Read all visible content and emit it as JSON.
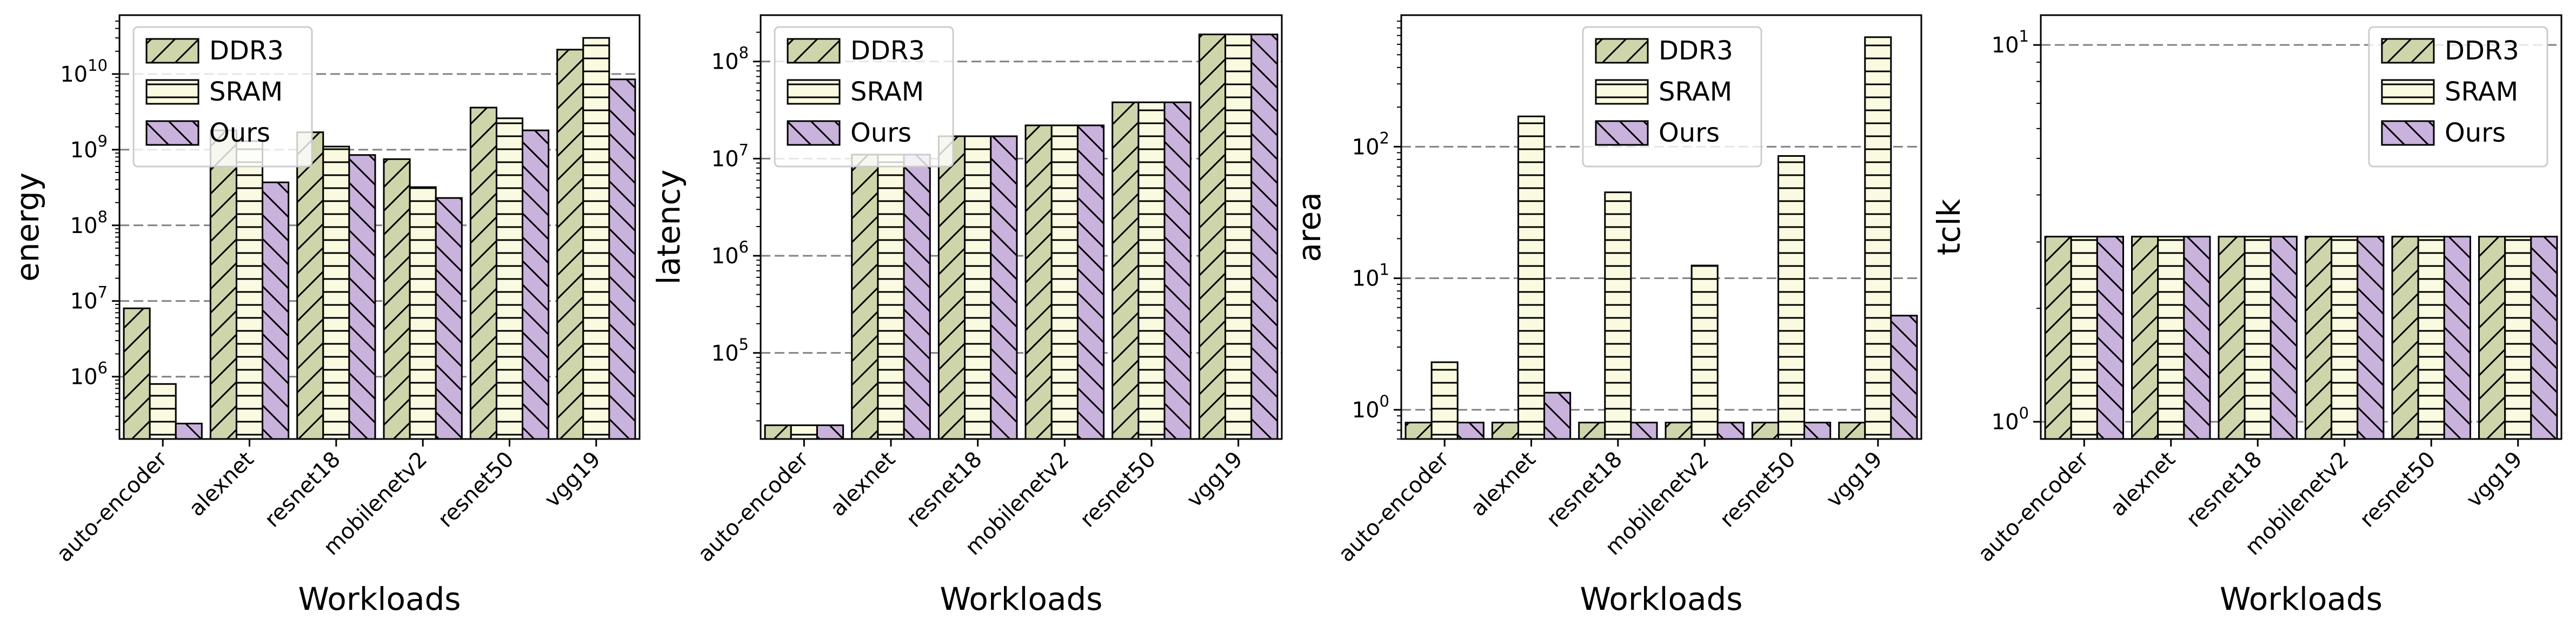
{
  "chart_data": [
    {
      "type": "bar",
      "yscale": "log",
      "ylabel": "energy",
      "xlabel": "Workloads",
      "ylim": [
        150000,
        60000000000
      ],
      "yticks": [
        {
          "value": 1000000,
          "base": "10",
          "exp": "6"
        },
        {
          "value": 10000000,
          "base": "10",
          "exp": "7"
        },
        {
          "value": 100000000,
          "base": "10",
          "exp": "8"
        },
        {
          "value": 1000000000,
          "base": "10",
          "exp": "9"
        },
        {
          "value": 10000000000,
          "base": "10",
          "exp": "10"
        }
      ],
      "grid": "y-major-dashed",
      "legend_position": "top-left",
      "categories": [
        "auto-encoder",
        "alexnet",
        "resnet18",
        "mobilenetv2",
        "resnet50",
        "vgg19"
      ],
      "series": [
        {
          "name": "DDR3",
          "values": [
            8000000,
            1800000000,
            1700000000,
            750000000,
            3600000000,
            21000000000
          ]
        },
        {
          "name": "SRAM",
          "values": [
            800000,
            1300000000,
            1100000000,
            320000000,
            2600000000,
            30000000000
          ]
        },
        {
          "name": "Ours",
          "values": [
            240000,
            370000000,
            850000000,
            230000000,
            1800000000,
            8500000000
          ]
        }
      ]
    },
    {
      "type": "bar",
      "yscale": "log",
      "ylabel": "latency",
      "xlabel": "Workloads",
      "ylim": [
        13000,
        300000000
      ],
      "yticks": [
        {
          "value": 100000,
          "base": "10",
          "exp": "5"
        },
        {
          "value": 1000000,
          "base": "10",
          "exp": "6"
        },
        {
          "value": 10000000,
          "base": "10",
          "exp": "7"
        },
        {
          "value": 100000000,
          "base": "10",
          "exp": "8"
        }
      ],
      "grid": "y-major-dashed",
      "legend_position": "top-left",
      "categories": [
        "auto-encoder",
        "alexnet",
        "resnet18",
        "mobilenetv2",
        "resnet50",
        "vgg19"
      ],
      "series": [
        {
          "name": "DDR3",
          "values": [
            18000,
            11000000,
            17000000,
            22000000,
            38000000,
            190000000
          ]
        },
        {
          "name": "SRAM",
          "values": [
            18000,
            11000000,
            17000000,
            22000000,
            38000000,
            190000000
          ]
        },
        {
          "name": "Ours",
          "values": [
            18000,
            11000000,
            17000000,
            22000000,
            38000000,
            190000000
          ]
        }
      ]
    },
    {
      "type": "bar",
      "yscale": "log",
      "ylabel": "area",
      "xlabel": "Workloads",
      "ylim": [
        0.6,
        1000
      ],
      "yticks": [
        {
          "value": 1,
          "base": "10",
          "exp": "0"
        },
        {
          "value": 10,
          "base": "10",
          "exp": "1"
        },
        {
          "value": 100,
          "base": "10",
          "exp": "2"
        }
      ],
      "grid": "y-major-dashed",
      "legend_position": "top-center",
      "categories": [
        "auto-encoder",
        "alexnet",
        "resnet18",
        "mobilenetv2",
        "resnet50",
        "vgg19"
      ],
      "series": [
        {
          "name": "DDR3",
          "values": [
            0.8,
            0.8,
            0.8,
            0.8,
            0.8,
            0.8
          ]
        },
        {
          "name": "SRAM",
          "values": [
            2.3,
            170,
            45,
            12.5,
            85,
            680
          ]
        },
        {
          "name": "Ours",
          "values": [
            0.8,
            1.35,
            0.8,
            0.8,
            0.8,
            5.2
          ]
        }
      ]
    },
    {
      "type": "bar",
      "yscale": "log",
      "ylabel": "tclk",
      "xlabel": "Workloads",
      "ylim": [
        0.9,
        12
      ],
      "yticks": [
        {
          "value": 1,
          "base": "10",
          "exp": "0"
        },
        {
          "value": 10,
          "base": "10",
          "exp": "1"
        }
      ],
      "grid": "y-major-dashed",
      "legend_position": "top-right",
      "categories": [
        "auto-encoder",
        "alexnet",
        "resnet18",
        "mobilenetv2",
        "resnet50",
        "vgg19"
      ],
      "series": [
        {
          "name": "DDR3",
          "values": [
            3.1,
            3.1,
            3.1,
            3.1,
            3.1,
            3.1
          ]
        },
        {
          "name": "SRAM",
          "values": [
            3.1,
            3.1,
            3.1,
            3.1,
            3.1,
            3.1
          ]
        },
        {
          "name": "Ours",
          "values": [
            3.1,
            3.1,
            3.1,
            3.1,
            3.1,
            3.1
          ]
        }
      ]
    }
  ],
  "colors": {
    "DDR3": "#cfd5aa",
    "SRAM": "#fafae0",
    "Ours": "#c9b2dc",
    "edge": "#000000",
    "grid": "#808080"
  },
  "patterns": {
    "DDR3": "forward-diagonal-hatch",
    "SRAM": "horizontal-hatch",
    "Ours": "backward-diagonal-hatch"
  }
}
